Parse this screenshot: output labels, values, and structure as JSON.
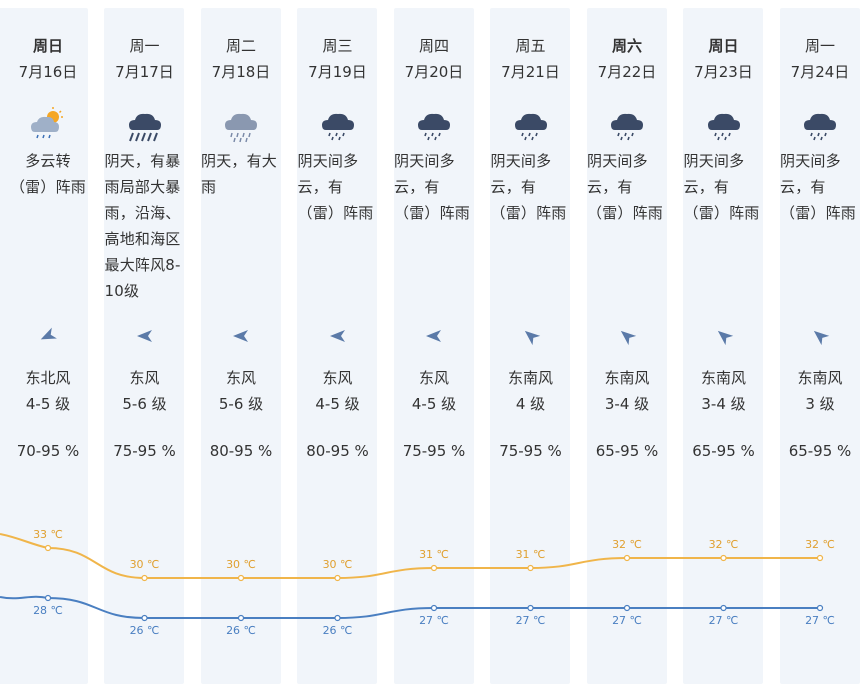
{
  "days": [
    {
      "dow": "周日",
      "date": "7月16日",
      "bold": true,
      "icon": "partly-cloudy-rain-icon",
      "desc": "多云转\n（雷）阵雨",
      "wind_dir": "东北风",
      "wind_level": "4-5 级",
      "humidity": "70-95 %",
      "hi": "33 ℃",
      "lo": "28 ℃",
      "hi_v": 33,
      "lo_v": 28,
      "arrow_deg": -25
    },
    {
      "dow": "周一",
      "date": "7月17日",
      "bold": false,
      "icon": "heavy-rain-icon",
      "desc": "阴天，有暴\n雨局部大暴\n雨，沿海、\n高地和海区\n最大阵风8-\n10级",
      "wind_dir": "东风",
      "wind_level": "5-6 级",
      "humidity": "75-95 %",
      "hi": "30 ℃",
      "lo": "26 ℃",
      "hi_v": 30,
      "lo_v": 26,
      "arrow_deg": 0
    },
    {
      "dow": "周二",
      "date": "7月18日",
      "bold": false,
      "icon": "rain-icon",
      "desc": "阴天，有大\n雨",
      "wind_dir": "东风",
      "wind_level": "5-6 级",
      "humidity": "80-95 %",
      "hi": "30 ℃",
      "lo": "26 ℃",
      "hi_v": 30,
      "lo_v": 26,
      "arrow_deg": 0
    },
    {
      "dow": "周三",
      "date": "7月19日",
      "bold": false,
      "icon": "thunder-shower-icon",
      "desc": "阴天间多\n云，有\n（雷）阵雨",
      "wind_dir": "东风",
      "wind_level": "4-5 级",
      "humidity": "80-95 %",
      "hi": "30 ℃",
      "lo": "26 ℃",
      "hi_v": 30,
      "lo_v": 26,
      "arrow_deg": 0
    },
    {
      "dow": "周四",
      "date": "7月20日",
      "bold": false,
      "icon": "thunder-shower-icon",
      "desc": "阴天间多\n云，有\n（雷）阵雨",
      "wind_dir": "东风",
      "wind_level": "4-5 级",
      "humidity": "75-95 %",
      "hi": "31 ℃",
      "lo": "27 ℃",
      "hi_v": 31,
      "lo_v": 27,
      "arrow_deg": 0
    },
    {
      "dow": "周五",
      "date": "7月21日",
      "bold": false,
      "icon": "thunder-shower-icon",
      "desc": "阴天间多\n云，有\n（雷）阵雨",
      "wind_dir": "东南风",
      "wind_level": "4 级",
      "humidity": "75-95 %",
      "hi": "31 ℃",
      "lo": "27 ℃",
      "hi_v": 31,
      "lo_v": 27,
      "arrow_deg": 40
    },
    {
      "dow": "周六",
      "date": "7月22日",
      "bold": true,
      "icon": "thunder-shower-icon",
      "desc": "阴天间多\n云，有\n（雷）阵雨",
      "wind_dir": "东南风",
      "wind_level": "3-4 级",
      "humidity": "65-95 %",
      "hi": "32 ℃",
      "lo": "27 ℃",
      "hi_v": 32,
      "lo_v": 27,
      "arrow_deg": 40
    },
    {
      "dow": "周日",
      "date": "7月23日",
      "bold": true,
      "icon": "thunder-shower-icon",
      "desc": "阴天间多\n云，有\n（雷）阵雨",
      "wind_dir": "东南风",
      "wind_level": "3-4 级",
      "humidity": "65-95 %",
      "hi": "32 ℃",
      "lo": "27 ℃",
      "hi_v": 32,
      "lo_v": 27,
      "arrow_deg": 40
    },
    {
      "dow": "周一",
      "date": "7月24日",
      "bold": false,
      "icon": "thunder-shower-icon",
      "desc": "阴天间多\n云，有\n（雷）阵雨",
      "wind_dir": "东南风",
      "wind_level": "3 级",
      "humidity": "65-95 %",
      "hi": "32 ℃",
      "lo": "27 ℃",
      "hi_v": 32,
      "lo_v": 27,
      "arrow_deg": 40
    }
  ],
  "colors": {
    "high_line": "#f0b54a",
    "low_line": "#4a7fc1",
    "column_bg": "#f1f5fa",
    "arrow": "#5b7aa8",
    "hi_label": "#e0a030",
    "lo_label": "#4a7fc1"
  },
  "chart_data": {
    "type": "line",
    "x": [
      "7月16日",
      "7月17日",
      "7月18日",
      "7月19日",
      "7月20日",
      "7月21日",
      "7月22日",
      "7月23日",
      "7月24日"
    ],
    "series": [
      {
        "values": [
          33,
          30,
          30,
          30,
          31,
          31,
          32,
          32,
          32
        ]
      },
      {
        "values": [
          28,
          26,
          26,
          26,
          27,
          27,
          27,
          27,
          27
        ]
      }
    ]
  }
}
